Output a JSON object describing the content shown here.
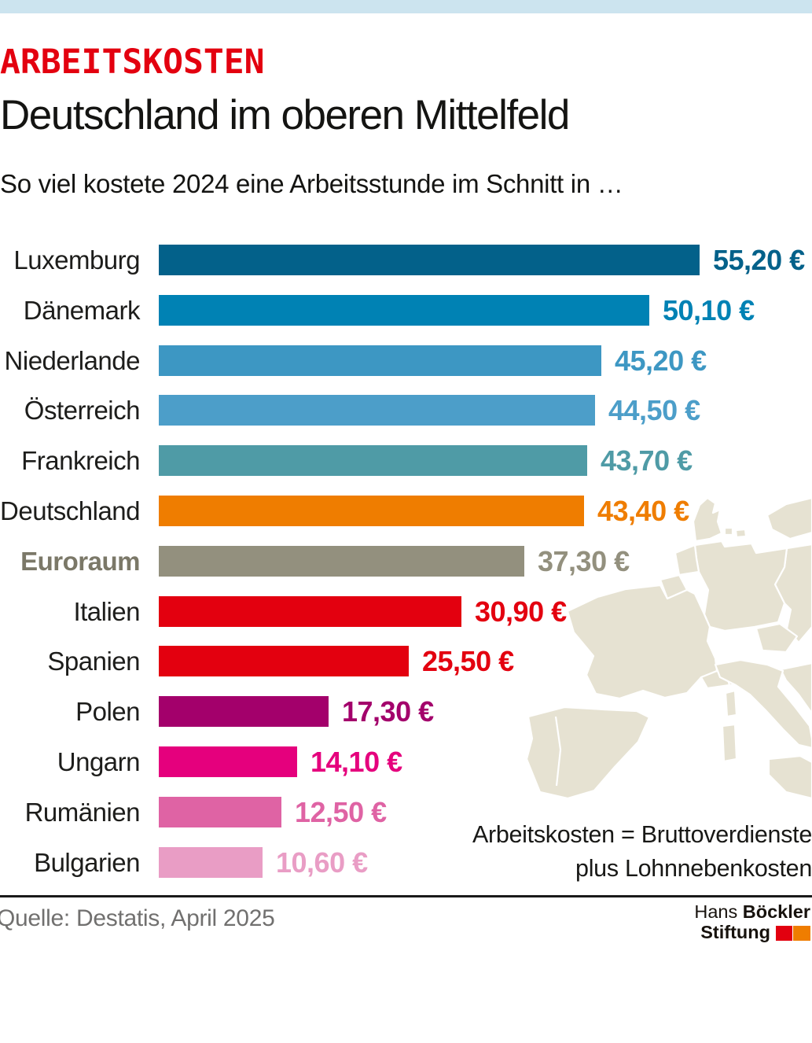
{
  "header": {
    "kicker": "ARBEITSKOSTEN",
    "title": "Deutschland im oberen Mittelfeld",
    "subtitle": "So viel kostete 2024 eine Arbeitsstunde im Schnitt in …"
  },
  "chart_data": {
    "type": "bar",
    "orientation": "horizontal",
    "title": "Deutschland im oberen Mittelfeld",
    "subtitle": "So viel kostete 2024 eine Arbeitsstunde im Schnitt in …",
    "unit": "Euro pro Arbeitsstunde",
    "year": "2024",
    "xlim": [
      0,
      55.2
    ],
    "grid": false,
    "legend": false,
    "categories": [
      "Luxemburg",
      "Dänemark",
      "Niederlande",
      "Österreich",
      "Frankreich",
      "Deutschland",
      "Euroraum",
      "Italien",
      "Spanien",
      "Polen",
      "Ungarn",
      "Rumänien",
      "Bulgarien"
    ],
    "values": [
      55.2,
      50.1,
      45.2,
      44.5,
      43.7,
      43.4,
      37.3,
      30.9,
      25.5,
      17.3,
      14.1,
      12.5,
      10.6
    ],
    "value_labels": [
      "55,20 €",
      "50,10 €",
      "45,20 €",
      "44,50 €",
      "43,70 €",
      "43,40 €",
      "37,30 €",
      "30,90 €",
      "25,50 €",
      "17,30 €",
      "14,10 €",
      "12,50 €",
      "10,60 €"
    ],
    "bar_colors": [
      "#03618a",
      "#0082b4",
      "#3d97c3",
      "#4c9ec9",
      "#4f9ba6",
      "#ef7d00",
      "#93907e",
      "#e3000f",
      "#e3000f",
      "#a3006b",
      "#e5007d",
      "#df63a4",
      "#e99dc5"
    ],
    "bold_rows": [
      "Euroraum"
    ],
    "annotation": "Arbeitskosten = Bruttoverdienste plus Lohnnebenkosten"
  },
  "annotation": {
    "line1": "Arbeitskosten = Bruttoverdienste",
    "line2": "plus Lohnnebenkosten"
  },
  "footer": {
    "source": "Quelle: Destatis, April 2025",
    "logo": {
      "name_light": "Hans",
      "name_bold": "Böckler",
      "line2": "Stiftung"
    }
  },
  "colors": {
    "top_strip": "#cce4ef",
    "kicker_red": "#e3000f",
    "map_land": "#e6e2d2",
    "euroraum_label": "#7b7868",
    "logo_red": "#e2000f",
    "logo_orange": "#ef7d00"
  }
}
